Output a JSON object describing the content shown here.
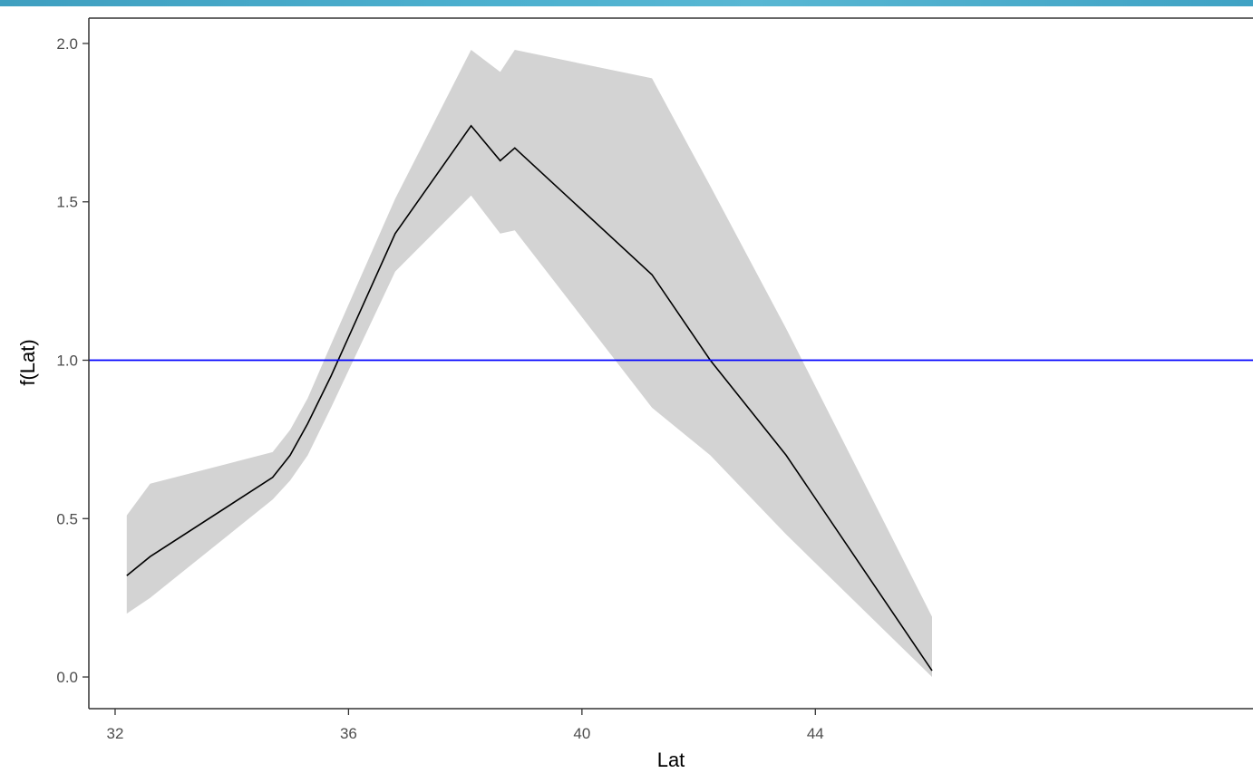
{
  "chart_data": {
    "type": "line",
    "xlabel": "Lat",
    "ylabel": "f(Lat)",
    "xlim": [
      31.55,
      51.5
    ],
    "ylim": [
      -0.1,
      2.08
    ],
    "x_ticks": [
      "32",
      "36",
      "40",
      "44"
    ],
    "y_ticks": [
      "0.0",
      "0.5",
      "1.0",
      "1.5",
      "2.0"
    ],
    "grid": false,
    "legend": "none",
    "reference_line": {
      "y": 1.0,
      "color": "#0000ff"
    },
    "series": [
      {
        "x": [
          32.2,
          32.6,
          34.7,
          35.0,
          35.3,
          35.7,
          36.8,
          38.1,
          38.6,
          38.85,
          41.2,
          42.2,
          43.5,
          46.0
        ],
        "y": [
          0.32,
          0.38,
          0.63,
          0.7,
          0.8,
          0.95,
          1.4,
          1.74,
          1.63,
          1.67,
          1.27,
          1.0,
          0.7,
          0.02
        ],
        "lower": [
          0.2,
          0.25,
          0.56,
          0.62,
          0.7,
          0.85,
          1.28,
          1.52,
          1.4,
          1.41,
          0.85,
          0.7,
          0.45,
          0.0
        ],
        "upper": [
          0.51,
          0.61,
          0.71,
          0.78,
          0.88,
          1.05,
          1.51,
          1.98,
          1.91,
          1.98,
          1.89,
          1.55,
          1.1,
          0.19
        ],
        "line_color": "#000000",
        "band_color": "#d3d3d3"
      }
    ]
  }
}
